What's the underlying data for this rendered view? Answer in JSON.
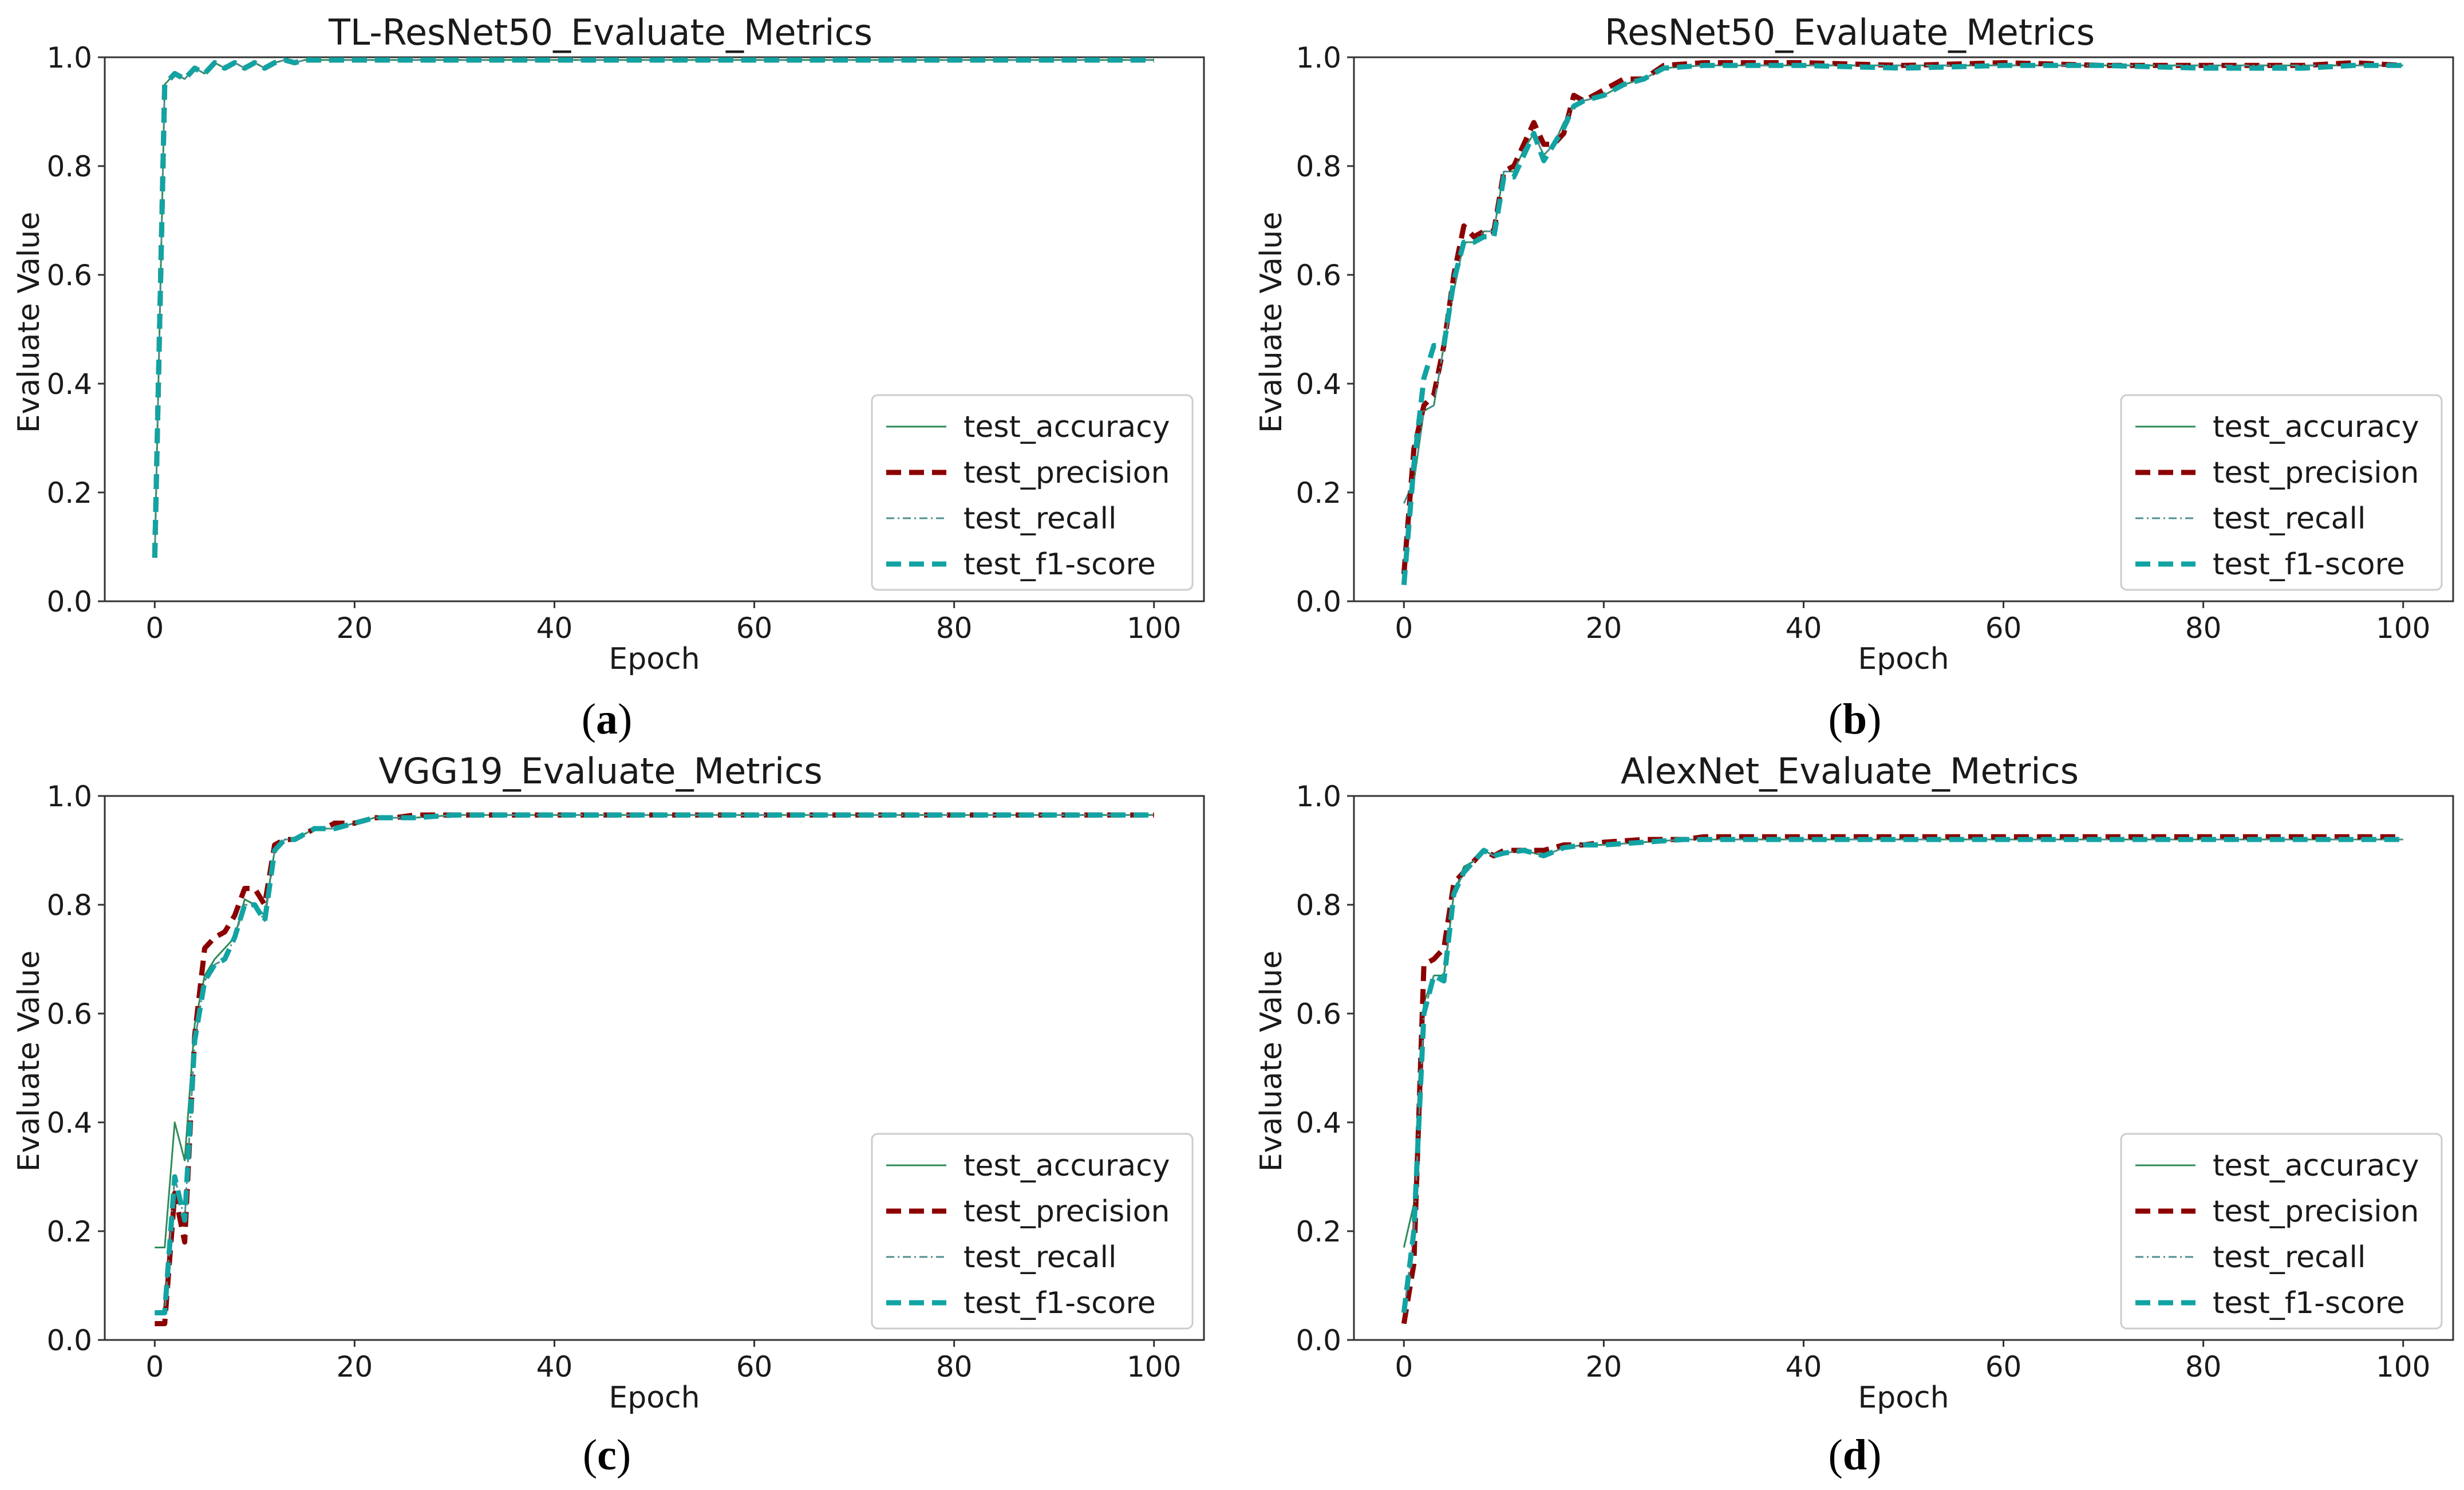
{
  "colors": {
    "test_accuracy": "#2e8b57",
    "test_precision": "#8b0000",
    "test_recall": "#4f8f8f",
    "test_f1": "#12a3a3",
    "axis": "#333333"
  },
  "chart_data": [
    {
      "type": "line",
      "panel_label": "a",
      "title": "TL-ResNet50_Evaluate_Metrics",
      "xlabel": "Epoch",
      "ylabel": "Evaluate Value",
      "xlim": [
        -5,
        105
      ],
      "ylim": [
        0.0,
        1.0
      ],
      "xticks": [
        "0",
        "20",
        "40",
        "60",
        "80",
        "100"
      ],
      "yticks": [
        "0.0",
        "0.2",
        "0.4",
        "0.6",
        "0.8",
        "1.0"
      ],
      "legend_position": "lower-right",
      "x": [
        0,
        1,
        2,
        3,
        4,
        5,
        6,
        7,
        8,
        9,
        10,
        11,
        12,
        13,
        14,
        15,
        20,
        30,
        40,
        50,
        60,
        70,
        80,
        90,
        100
      ],
      "series": [
        {
          "name": "test_accuracy",
          "style": "thin-solid",
          "values": [
            0.08,
            0.95,
            0.97,
            0.96,
            0.98,
            0.97,
            0.99,
            0.98,
            0.99,
            0.98,
            0.99,
            0.98,
            0.99,
            0.995,
            0.99,
            0.995,
            0.995,
            0.995,
            0.995,
            0.995,
            0.995,
            0.995,
            0.995,
            0.995,
            0.995
          ]
        },
        {
          "name": "test_precision",
          "style": "dashed",
          "values": [
            0.08,
            0.95,
            0.97,
            0.96,
            0.98,
            0.97,
            0.99,
            0.98,
            0.99,
            0.98,
            0.99,
            0.98,
            0.99,
            0.995,
            0.99,
            0.995,
            0.995,
            0.995,
            0.995,
            0.995,
            0.995,
            0.995,
            0.995,
            0.995,
            0.995
          ]
        },
        {
          "name": "test_recall",
          "style": "dashdot",
          "values": [
            0.08,
            0.95,
            0.97,
            0.96,
            0.98,
            0.97,
            0.99,
            0.98,
            0.99,
            0.98,
            0.99,
            0.98,
            0.99,
            0.995,
            0.99,
            0.995,
            0.995,
            0.995,
            0.995,
            0.995,
            0.995,
            0.995,
            0.995,
            0.995,
            0.995
          ]
        },
        {
          "name": "test_f1-score",
          "style": "dashed",
          "values": [
            0.08,
            0.95,
            0.97,
            0.96,
            0.98,
            0.97,
            0.99,
            0.98,
            0.99,
            0.98,
            0.99,
            0.98,
            0.99,
            0.995,
            0.99,
            0.995,
            0.995,
            0.995,
            0.995,
            0.995,
            0.995,
            0.995,
            0.995,
            0.995,
            0.995
          ]
        }
      ]
    },
    {
      "type": "line",
      "panel_label": "b",
      "title": "ResNet50_Evaluate_Metrics",
      "xlabel": "Epoch",
      "ylabel": "Evaluate Value",
      "xlim": [
        -5,
        105
      ],
      "ylim": [
        0.0,
        1.0
      ],
      "xticks": [
        "0",
        "20",
        "40",
        "60",
        "80",
        "100"
      ],
      "yticks": [
        "0.0",
        "0.2",
        "0.4",
        "0.6",
        "0.8",
        "1.0"
      ],
      "legend_position": "lower-right",
      "x": [
        0,
        1,
        2,
        3,
        4,
        5,
        6,
        7,
        8,
        9,
        10,
        11,
        12,
        13,
        14,
        15,
        16,
        17,
        18,
        20,
        22,
        24,
        26,
        30,
        40,
        50,
        60,
        70,
        80,
        90,
        95,
        100
      ],
      "series": [
        {
          "name": "test_accuracy",
          "style": "thin-solid",
          "values": [
            0.18,
            0.22,
            0.35,
            0.36,
            0.47,
            0.57,
            0.66,
            0.66,
            0.68,
            0.68,
            0.79,
            0.79,
            0.83,
            0.86,
            0.82,
            0.84,
            0.88,
            0.91,
            0.92,
            0.93,
            0.95,
            0.96,
            0.98,
            0.985,
            0.985,
            0.985,
            0.985,
            0.985,
            0.985,
            0.985,
            0.985,
            0.985
          ]
        },
        {
          "name": "test_precision",
          "style": "dashed",
          "values": [
            0.05,
            0.28,
            0.36,
            0.38,
            0.47,
            0.6,
            0.69,
            0.67,
            0.68,
            0.68,
            0.79,
            0.8,
            0.84,
            0.88,
            0.84,
            0.84,
            0.86,
            0.93,
            0.92,
            0.94,
            0.96,
            0.96,
            0.985,
            0.99,
            0.99,
            0.985,
            0.99,
            0.985,
            0.985,
            0.985,
            0.99,
            0.985
          ]
        },
        {
          "name": "test_recall",
          "style": "dashdot",
          "values": [
            0.18,
            0.22,
            0.35,
            0.36,
            0.47,
            0.57,
            0.66,
            0.66,
            0.68,
            0.68,
            0.79,
            0.79,
            0.83,
            0.86,
            0.82,
            0.84,
            0.88,
            0.91,
            0.92,
            0.93,
            0.95,
            0.96,
            0.98,
            0.985,
            0.985,
            0.985,
            0.985,
            0.985,
            0.985,
            0.985,
            0.985,
            0.985
          ]
        },
        {
          "name": "test_f1-score",
          "style": "dashed",
          "values": [
            0.03,
            0.25,
            0.41,
            0.47,
            0.47,
            0.59,
            0.66,
            0.66,
            0.67,
            0.67,
            0.78,
            0.78,
            0.82,
            0.86,
            0.81,
            0.84,
            0.87,
            0.91,
            0.92,
            0.93,
            0.95,
            0.96,
            0.98,
            0.985,
            0.985,
            0.98,
            0.985,
            0.985,
            0.98,
            0.98,
            0.985,
            0.985
          ]
        }
      ]
    },
    {
      "type": "line",
      "panel_label": "c",
      "title": "VGG19_Evaluate_Metrics",
      "xlabel": "Epoch",
      "ylabel": "Evaluate Value",
      "xlim": [
        -5,
        105
      ],
      "ylim": [
        0.0,
        1.0
      ],
      "xticks": [
        "0",
        "20",
        "40",
        "60",
        "80",
        "100"
      ],
      "yticks": [
        "0.0",
        "0.2",
        "0.4",
        "0.6",
        "0.8",
        "1.0"
      ],
      "legend_position": "lower-right",
      "x": [
        0,
        1,
        2,
        3,
        4,
        5,
        6,
        7,
        8,
        9,
        10,
        11,
        12,
        13,
        14,
        15,
        16,
        17,
        18,
        20,
        22,
        24,
        26,
        30,
        40,
        50,
        60,
        70,
        80,
        90,
        100
      ],
      "series": [
        {
          "name": "test_accuracy",
          "style": "thin-solid",
          "values": [
            0.17,
            0.17,
            0.4,
            0.33,
            0.58,
            0.67,
            0.7,
            0.72,
            0.74,
            0.81,
            0.8,
            0.78,
            0.9,
            0.92,
            0.92,
            0.93,
            0.94,
            0.94,
            0.94,
            0.95,
            0.96,
            0.96,
            0.96,
            0.965,
            0.965,
            0.965,
            0.965,
            0.965,
            0.965,
            0.965,
            0.965
          ]
        },
        {
          "name": "test_precision",
          "style": "dashed",
          "values": [
            0.03,
            0.03,
            0.27,
            0.18,
            0.56,
            0.72,
            0.74,
            0.75,
            0.78,
            0.83,
            0.83,
            0.8,
            0.91,
            0.92,
            0.92,
            0.93,
            0.94,
            0.94,
            0.95,
            0.95,
            0.96,
            0.96,
            0.965,
            0.965,
            0.965,
            0.965,
            0.965,
            0.965,
            0.965,
            0.965,
            0.965
          ]
        },
        {
          "name": "test_recall",
          "style": "dashdot",
          "values": [
            0.05,
            0.05,
            0.3,
            0.22,
            0.55,
            0.66,
            0.69,
            0.7,
            0.74,
            0.8,
            0.8,
            0.77,
            0.9,
            0.92,
            0.92,
            0.93,
            0.94,
            0.94,
            0.94,
            0.95,
            0.96,
            0.96,
            0.96,
            0.965,
            0.965,
            0.965,
            0.965,
            0.965,
            0.965,
            0.965,
            0.965
          ]
        },
        {
          "name": "test_f1-score",
          "style": "dashed",
          "values": [
            0.05,
            0.05,
            0.3,
            0.22,
            0.55,
            0.66,
            0.69,
            0.7,
            0.74,
            0.8,
            0.8,
            0.77,
            0.9,
            0.92,
            0.92,
            0.93,
            0.94,
            0.94,
            0.94,
            0.95,
            0.96,
            0.96,
            0.96,
            0.965,
            0.965,
            0.965,
            0.965,
            0.965,
            0.965,
            0.965,
            0.965
          ]
        }
      ]
    },
    {
      "type": "line",
      "panel_label": "d",
      "title": "AlexNet_Evaluate_Metrics",
      "xlabel": "Epoch",
      "ylabel": "Evaluate Value",
      "xlim": [
        -5,
        105
      ],
      "ylim": [
        0.0,
        1.0
      ],
      "xticks": [
        "0",
        "20",
        "40",
        "60",
        "80",
        "100"
      ],
      "yticks": [
        "0.0",
        "0.2",
        "0.4",
        "0.6",
        "0.8",
        "1.0"
      ],
      "legend_position": "lower-right",
      "x": [
        0,
        1,
        2,
        3,
        4,
        5,
        6,
        7,
        8,
        9,
        10,
        12,
        14,
        16,
        18,
        20,
        24,
        28,
        30,
        40,
        50,
        60,
        70,
        80,
        90,
        100
      ],
      "series": [
        {
          "name": "test_accuracy",
          "style": "thin-solid",
          "values": [
            0.17,
            0.25,
            0.62,
            0.67,
            0.67,
            0.82,
            0.87,
            0.88,
            0.9,
            0.89,
            0.895,
            0.9,
            0.89,
            0.905,
            0.91,
            0.91,
            0.915,
            0.92,
            0.92,
            0.92,
            0.92,
            0.92,
            0.92,
            0.92,
            0.92,
            0.92
          ]
        },
        {
          "name": "test_precision",
          "style": "dashed",
          "values": [
            0.03,
            0.14,
            0.69,
            0.7,
            0.72,
            0.84,
            0.86,
            0.88,
            0.9,
            0.89,
            0.9,
            0.9,
            0.9,
            0.91,
            0.91,
            0.915,
            0.92,
            0.92,
            0.925,
            0.925,
            0.925,
            0.925,
            0.925,
            0.925,
            0.925,
            0.925
          ]
        },
        {
          "name": "test_recall",
          "style": "dashdot",
          "values": [
            0.05,
            0.2,
            0.6,
            0.67,
            0.66,
            0.82,
            0.86,
            0.88,
            0.9,
            0.89,
            0.895,
            0.9,
            0.89,
            0.905,
            0.91,
            0.91,
            0.915,
            0.92,
            0.92,
            0.92,
            0.92,
            0.92,
            0.92,
            0.92,
            0.92,
            0.92
          ]
        },
        {
          "name": "test_f1-score",
          "style": "dashed",
          "values": [
            0.05,
            0.2,
            0.6,
            0.67,
            0.66,
            0.82,
            0.86,
            0.88,
            0.9,
            0.89,
            0.895,
            0.9,
            0.89,
            0.905,
            0.91,
            0.91,
            0.915,
            0.92,
            0.92,
            0.92,
            0.92,
            0.92,
            0.92,
            0.92,
            0.92,
            0.92
          ]
        }
      ]
    }
  ]
}
